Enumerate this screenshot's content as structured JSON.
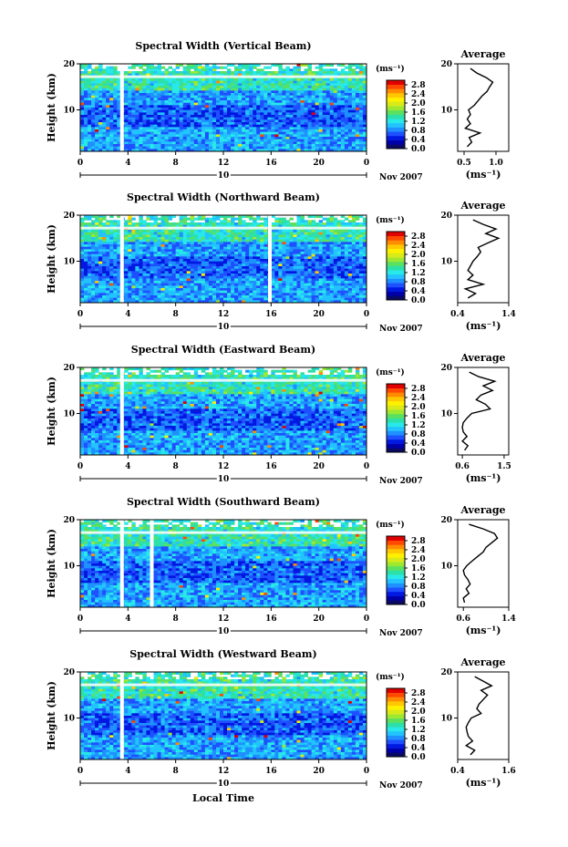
{
  "chart_data": [
    {
      "type": "heatmap",
      "title": "Spectral Width (Vertical Beam)",
      "ylabel": "Height (km)",
      "xticks": [
        "0",
        "4",
        "8",
        "12",
        "16",
        "20",
        "0"
      ],
      "yticks": [
        "10",
        "20"
      ],
      "date_day": "10",
      "date_month": "Nov 2007",
      "colorbar": {
        "unit": "(ms⁻¹)",
        "ticks": [
          "2.8",
          "2.4",
          "2.0",
          "1.6",
          "1.2",
          "0.8",
          "0.4",
          "0.0"
        ],
        "range": [
          0,
          3.0
        ]
      },
      "x_range": [
        0,
        24
      ],
      "y_range": [
        1,
        20
      ],
      "data_gaps_local_time": [
        3.5
      ],
      "profile": {
        "title": "Average",
        "xlabel": "(ms⁻¹)",
        "xticks": [
          "0.5",
          "1.0"
        ],
        "yticks": [
          "10",
          "20"
        ],
        "xlim": [
          0.4,
          1.2
        ],
        "heights": [
          2,
          3,
          4,
          5,
          6,
          7,
          8,
          9,
          10,
          11,
          12,
          13,
          14,
          15,
          16,
          17,
          18,
          19
        ],
        "values": [
          0.55,
          0.62,
          0.58,
          0.75,
          0.52,
          0.6,
          0.55,
          0.6,
          0.57,
          0.66,
          0.72,
          0.78,
          0.86,
          0.9,
          0.95,
          0.85,
          0.7,
          0.6
        ]
      }
    },
    {
      "type": "heatmap",
      "title": "Spectral Width (Northward Beam)",
      "ylabel": "Height (km)",
      "xticks": [
        "0",
        "4",
        "8",
        "12",
        "16",
        "20",
        "0"
      ],
      "yticks": [
        "10",
        "20"
      ],
      "date_day": "10",
      "date_month": "Nov 2007",
      "colorbar": {
        "unit": "(ms⁻¹)",
        "ticks": [
          "2.8",
          "2.4",
          "2.0",
          "1.6",
          "1.2",
          "0.8",
          "0.4",
          "0.0"
        ],
        "range": [
          0,
          3.0
        ]
      },
      "x_range": [
        0,
        24
      ],
      "y_range": [
        1,
        20
      ],
      "data_gaps_local_time": [
        3.5,
        15.9
      ],
      "profile": {
        "title": "Average",
        "xlabel": "(ms⁻¹)",
        "xticks": [
          "0.4",
          "1.4"
        ],
        "yticks": [
          "10",
          "20"
        ],
        "xlim": [
          0.4,
          1.4
        ],
        "heights": [
          2,
          3,
          4,
          5,
          6,
          7,
          8,
          9,
          10,
          11,
          12,
          13,
          14,
          15,
          16,
          17,
          18,
          19
        ],
        "values": [
          0.6,
          0.75,
          0.55,
          0.9,
          0.6,
          0.7,
          0.6,
          0.65,
          0.7,
          0.78,
          0.85,
          0.8,
          1.0,
          1.2,
          0.95,
          1.15,
          0.9,
          0.7
        ]
      }
    },
    {
      "type": "heatmap",
      "title": "Spectral Width (Eastward Beam)",
      "ylabel": "Height (km)",
      "xticks": [
        "0",
        "4",
        "8",
        "12",
        "16",
        "20",
        "0"
      ],
      "yticks": [
        "10",
        "20"
      ],
      "date_day": "10",
      "date_month": "Nov 2007",
      "colorbar": {
        "unit": "(ms⁻¹)",
        "ticks": [
          "2.8",
          "2.4",
          "2.0",
          "1.6",
          "1.2",
          "0.8",
          "0.4",
          "0.0"
        ],
        "range": [
          0,
          3.0
        ]
      },
      "x_range": [
        0,
        24
      ],
      "y_range": [
        1,
        20
      ],
      "data_gaps_local_time": [
        3.5
      ],
      "profile": {
        "title": "Average",
        "xlabel": "(ms⁻¹)",
        "xticks": [
          "0.6",
          "1.5"
        ],
        "yticks": [
          "10",
          "20"
        ],
        "xlim": [
          0.5,
          1.6
        ],
        "heights": [
          2,
          3,
          4,
          5,
          6,
          7,
          8,
          9,
          10,
          11,
          12,
          13,
          14,
          15,
          16,
          17,
          18,
          19
        ],
        "values": [
          0.65,
          0.72,
          0.6,
          0.7,
          0.62,
          0.6,
          0.62,
          0.7,
          0.8,
          1.2,
          1.1,
          0.9,
          1.0,
          1.25,
          1.05,
          1.3,
          0.95,
          0.75
        ]
      }
    },
    {
      "type": "heatmap",
      "title": "Spectral Width (Southward Beam)",
      "ylabel": "Height (km)",
      "xticks": [
        "0",
        "4",
        "8",
        "12",
        "16",
        "20",
        "0"
      ],
      "yticks": [
        "10",
        "20"
      ],
      "date_day": "10",
      "date_month": "Nov 2007",
      "colorbar": {
        "unit": "(ms⁻¹)",
        "ticks": [
          "2.8",
          "2.4",
          "2.0",
          "1.6",
          "1.2",
          "0.8",
          "0.4",
          "0.0"
        ],
        "range": [
          0,
          3.0
        ]
      },
      "x_range": [
        0,
        24
      ],
      "y_range": [
        1,
        20
      ],
      "data_gaps_local_time": [
        3.5,
        6.0
      ],
      "profile": {
        "title": "Average",
        "xlabel": "(ms⁻¹)",
        "xticks": [
          "0.6",
          "1.4"
        ],
        "yticks": [
          "10",
          "20"
        ],
        "xlim": [
          0.5,
          1.4
        ],
        "heights": [
          2,
          3,
          4,
          5,
          6,
          7,
          8,
          9,
          10,
          11,
          12,
          13,
          14,
          15,
          16,
          17,
          18,
          19
        ],
        "values": [
          0.62,
          0.6,
          0.7,
          0.65,
          0.72,
          0.68,
          0.62,
          0.6,
          0.66,
          0.75,
          0.85,
          0.95,
          1.0,
          1.1,
          1.2,
          1.15,
          0.95,
          0.7
        ]
      }
    },
    {
      "type": "heatmap",
      "title": "Spectral Width (Westward Beam)",
      "ylabel": "Height (km)",
      "xlabel": "Local Time",
      "xticks": [
        "0",
        "4",
        "8",
        "12",
        "16",
        "20",
        "0"
      ],
      "yticks": [
        "10",
        "20"
      ],
      "date_day": "10",
      "date_month": "Nov 2007",
      "colorbar": {
        "unit": "(ms⁻¹)",
        "ticks": [
          "2.8",
          "2.4",
          "2.0",
          "1.6",
          "1.2",
          "0.8",
          "0.4",
          "0.0"
        ],
        "range": [
          0,
          3.0
        ]
      },
      "x_range": [
        0,
        24
      ],
      "y_range": [
        1,
        20
      ],
      "data_gaps_local_time": [
        3.5
      ],
      "profile": {
        "title": "Average",
        "xlabel": "(ms⁻¹)",
        "xticks": [
          "0.4",
          "1.6"
        ],
        "yticks": [
          "10",
          "20"
        ],
        "xlim": [
          0.4,
          1.6
        ],
        "heights": [
          2,
          3,
          4,
          5,
          6,
          7,
          8,
          9,
          10,
          11,
          12,
          13,
          14,
          15,
          16,
          17,
          18,
          19
        ],
        "values": [
          0.7,
          0.8,
          0.6,
          0.75,
          0.65,
          0.62,
          0.6,
          0.65,
          0.72,
          0.95,
          0.85,
          0.9,
          1.0,
          1.1,
          0.95,
          1.2,
          1.0,
          0.8
        ]
      }
    }
  ]
}
